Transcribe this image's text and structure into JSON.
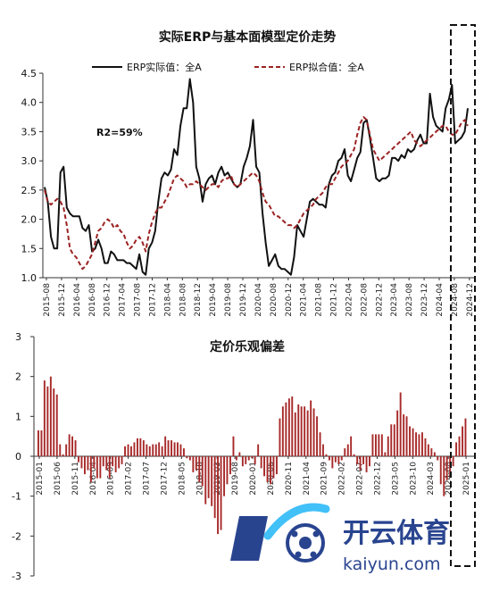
{
  "chart_data": [
    {
      "type": "line",
      "title": "实际ERP与基本面模型定价走势",
      "annotation": "R2=59%",
      "ylim": [
        1.0,
        4.5
      ],
      "yticks": [
        "1.0",
        "1.5",
        "2.0",
        "2.5",
        "3.0",
        "3.5",
        "4.0",
        "4.5"
      ],
      "x_labels": [
        "2015-08",
        "2015-12",
        "2016-04",
        "2016-08",
        "2016-12",
        "2017-04",
        "2017-08",
        "2017-12",
        "2018-04",
        "2018-08",
        "2018-12",
        "2019-04",
        "2019-08",
        "2019-12",
        "2020-04",
        "2020-08",
        "2020-12",
        "2021-04",
        "2021-08",
        "2021-12",
        "2022-04",
        "2022-08",
        "2022-12",
        "2023-04",
        "2023-08",
        "2023-12",
        "2024-04",
        "2024-08",
        "2024-12"
      ],
      "legend_position": "top",
      "series": [
        {
          "name": "ERP实际值：全A",
          "color": "#111111",
          "style": "solid",
          "values": [
            2.55,
            2.3,
            1.7,
            1.5,
            1.5,
            2.8,
            2.9,
            2.2,
            2.1,
            2.05,
            2.05,
            2.05,
            1.85,
            1.8,
            1.9,
            1.45,
            1.5,
            1.65,
            1.5,
            1.25,
            1.25,
            1.45,
            1.4,
            1.3,
            1.3,
            1.3,
            1.25,
            1.25,
            1.2,
            1.15,
            1.4,
            1.1,
            1.05,
            1.5,
            1.6,
            1.8,
            2.3,
            2.7,
            2.8,
            2.75,
            2.85,
            3.2,
            3.1,
            3.6,
            3.9,
            3.9,
            4.4,
            4.0,
            2.9,
            2.7,
            2.3,
            2.6,
            2.7,
            2.75,
            2.6,
            2.8,
            2.9,
            2.75,
            2.8,
            2.7,
            2.6,
            2.55,
            2.6,
            2.9,
            3.05,
            3.25,
            3.7,
            2.9,
            2.8,
            2.1,
            1.6,
            1.2,
            1.3,
            1.4,
            1.2,
            1.15,
            1.15,
            1.1,
            1.05,
            1.35,
            1.9,
            1.8,
            1.7,
            2.0,
            2.3,
            2.35,
            2.3,
            2.25,
            2.25,
            2.2,
            2.6,
            2.75,
            2.8,
            3.0,
            3.05,
            3.2,
            2.75,
            2.65,
            2.85,
            3.05,
            3.15,
            3.65,
            3.7,
            3.4,
            3.05,
            2.7,
            2.65,
            2.7,
            2.7,
            2.75,
            3.05,
            3.05,
            3.0,
            3.1,
            3.05,
            3.2,
            3.15,
            3.2,
            3.35,
            3.45,
            3.3,
            3.3,
            4.15,
            3.75,
            3.6,
            3.55,
            3.5,
            3.9,
            4.05,
            4.3,
            3.3,
            3.35,
            3.4,
            3.5,
            3.9
          ]
        },
        {
          "name": "ERP拟合值：全A",
          "color": "#9b2323",
          "style": "dashed",
          "values": [
            2.5,
            2.3,
            2.25,
            2.3,
            2.35,
            2.3,
            2.2,
            1.9,
            1.5,
            1.4,
            1.35,
            1.25,
            1.15,
            1.2,
            1.3,
            1.4,
            1.6,
            1.8,
            1.85,
            1.95,
            2.0,
            1.95,
            1.85,
            1.9,
            1.8,
            1.75,
            1.6,
            1.5,
            1.55,
            1.65,
            1.7,
            1.6,
            1.45,
            1.75,
            1.95,
            2.1,
            2.2,
            2.2,
            2.3,
            2.4,
            2.55,
            2.7,
            2.75,
            2.7,
            2.65,
            2.55,
            2.6,
            2.6,
            2.65,
            2.6,
            2.55,
            2.5,
            2.55,
            2.6,
            2.6,
            2.55,
            2.65,
            2.7,
            2.7,
            2.75,
            2.6,
            2.55,
            2.6,
            2.65,
            2.7,
            2.75,
            2.8,
            2.75,
            2.65,
            2.45,
            2.3,
            2.25,
            2.15,
            2.05,
            2.05,
            2.0,
            1.95,
            1.9,
            1.9,
            1.85,
            1.9,
            2.0,
            2.1,
            2.15,
            2.2,
            2.25,
            2.35,
            2.4,
            2.45,
            2.55,
            2.6,
            2.6,
            2.7,
            2.8,
            2.9,
            2.95,
            3.0,
            3.1,
            3.2,
            3.45,
            3.65,
            3.75,
            3.7,
            3.45,
            3.2,
            3.1,
            3.0,
            3.05,
            3.1,
            3.15,
            3.2,
            3.25,
            3.3,
            3.35,
            3.4,
            3.45,
            3.5,
            3.35,
            3.3,
            3.25,
            3.3,
            3.35,
            3.4,
            3.45,
            3.5,
            3.55,
            3.6,
            3.6,
            3.5,
            3.45,
            3.45,
            3.55,
            3.65,
            3.7,
            3.6
          ]
        }
      ]
    },
    {
      "type": "bar",
      "title": "定价乐观偏差",
      "ylim": [
        -3,
        3
      ],
      "yticks": [
        "-3",
        "-2",
        "-1",
        "0",
        "1",
        "2",
        "3"
      ],
      "x_labels": [
        "2015-01",
        "2015-06",
        "2015-11",
        "2016-04",
        "2016-09",
        "2017-02",
        "2017-07",
        "2017-12",
        "2018-05",
        "2018-10",
        "2019-03",
        "2019-08",
        "2020-01",
        "2020-06",
        "2020-11",
        "2021-04",
        "2021-09",
        "2022-02",
        "2022-07",
        "2022-12",
        "2023-05",
        "2023-10",
        "2024-03",
        "2024-08",
        "2025-01"
      ],
      "series": [
        {
          "name": "定价乐观偏差",
          "color": "#a82a2a",
          "values": [
            0.65,
            0.65,
            1.9,
            1.75,
            2.0,
            1.7,
            1.55,
            0.3,
            0.05,
            0.3,
            0.55,
            0.5,
            0.4,
            -0.15,
            -0.3,
            -0.45,
            -0.35,
            -0.65,
            -0.3,
            -0.55,
            -0.55,
            -0.25,
            -0.35,
            -0.55,
            -0.25,
            -0.4,
            -0.3,
            -0.2,
            0.25,
            0.3,
            0.25,
            0.35,
            0.45,
            0.45,
            0.4,
            0.3,
            0.25,
            0.3,
            0.3,
            0.35,
            0.25,
            0.5,
            0.4,
            0.4,
            0.35,
            0.35,
            0.3,
            0.2,
            -0.05,
            -0.1,
            -0.4,
            -0.35,
            -0.65,
            -0.75,
            -1.2,
            -1.05,
            -1.25,
            -1.55,
            -1.95,
            -1.85,
            -1.0,
            -0.7,
            -0.45,
            0.5,
            -0.1,
            0.1,
            -0.25,
            -0.2,
            -0.1,
            -0.05,
            -0.2,
            0.3,
            -0.3,
            -0.5,
            -0.65,
            -0.7,
            -0.55,
            -0.45,
            0.95,
            1.25,
            1.35,
            1.45,
            1.5,
            1.1,
            1.3,
            1.25,
            1.25,
            1.15,
            1.4,
            1.2,
            1.0,
            0.6,
            0.3,
            0.05,
            -0.1,
            -0.3,
            -0.15,
            -0.2,
            -0.1,
            0.2,
            0.3,
            0.5,
            0.05,
            -0.2,
            -0.35,
            -0.2,
            -0.4,
            -0.25,
            0.55,
            0.55,
            0.55,
            0.55,
            0.1,
            0.5,
            0.8,
            0.8,
            1.15,
            1.6,
            1.05,
            1.0,
            0.75,
            0.7,
            0.6,
            0.55,
            0.6,
            0.45,
            0.3,
            0.2,
            0.1,
            -0.1,
            -0.7,
            -1.0,
            -0.6,
            -0.5,
            -0.25,
            0.35,
            0.5,
            0.75,
            0.95
          ]
        }
      ]
    }
  ],
  "watermark": {
    "brand": "开云体育",
    "url": "kaiyun.com"
  }
}
